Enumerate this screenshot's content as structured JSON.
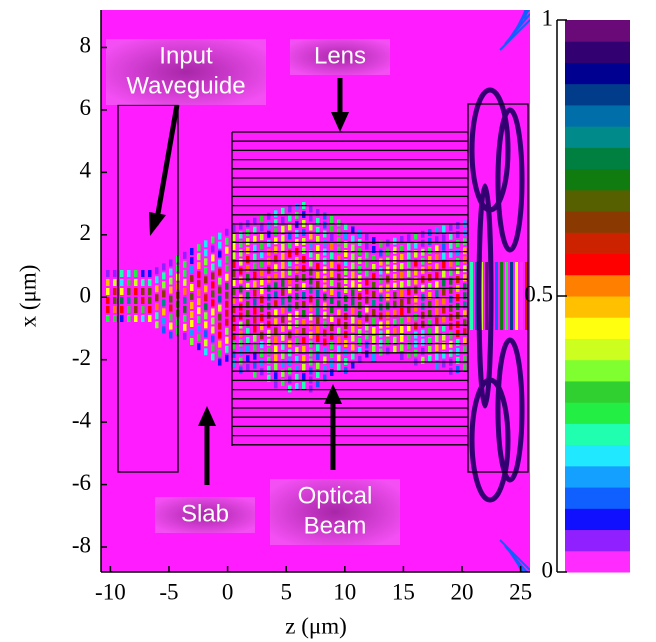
{
  "chart_data": {
    "type": "field",
    "x_label": "z (μm)",
    "y_label": "x (μm)",
    "xlim": [
      -10.8,
      25.8
    ],
    "xticks": [
      -10,
      -5,
      0,
      5,
      10,
      15,
      20,
      25
    ],
    "ylim": [
      -8.8,
      9.2
    ],
    "yticks": [
      -8,
      -6,
      -4,
      -2,
      0,
      2,
      4,
      6,
      8
    ],
    "background": "#ff1cff",
    "colorbar": {
      "lim": [
        0,
        1
      ],
      "ticks": [
        0,
        0.5,
        1
      ],
      "colors": [
        "#ff2bff",
        "#9020ff",
        "#1010ff",
        "#1060ff",
        "#14a0ff",
        "#20e8ff",
        "#20ffb0",
        "#22ee44",
        "#30d030",
        "#80ff30",
        "#ccff20",
        "#ffff10",
        "#ffc000",
        "#ff8000",
        "#ff0000",
        "#cc2200",
        "#8a3a00",
        "#566000",
        "#107c10",
        "#008040",
        "#008a8a",
        "#006ea8",
        "#003c8a",
        "#000090",
        "#320070",
        "#6a0a78"
      ]
    },
    "annotations": [
      {
        "lines": [
          "Input",
          "Waveguide"
        ]
      },
      {
        "lines": [
          "Lens"
        ]
      },
      {
        "lines": [
          "Slab"
        ]
      },
      {
        "lines": [
          "Optical",
          "Beam"
        ]
      }
    ]
  }
}
